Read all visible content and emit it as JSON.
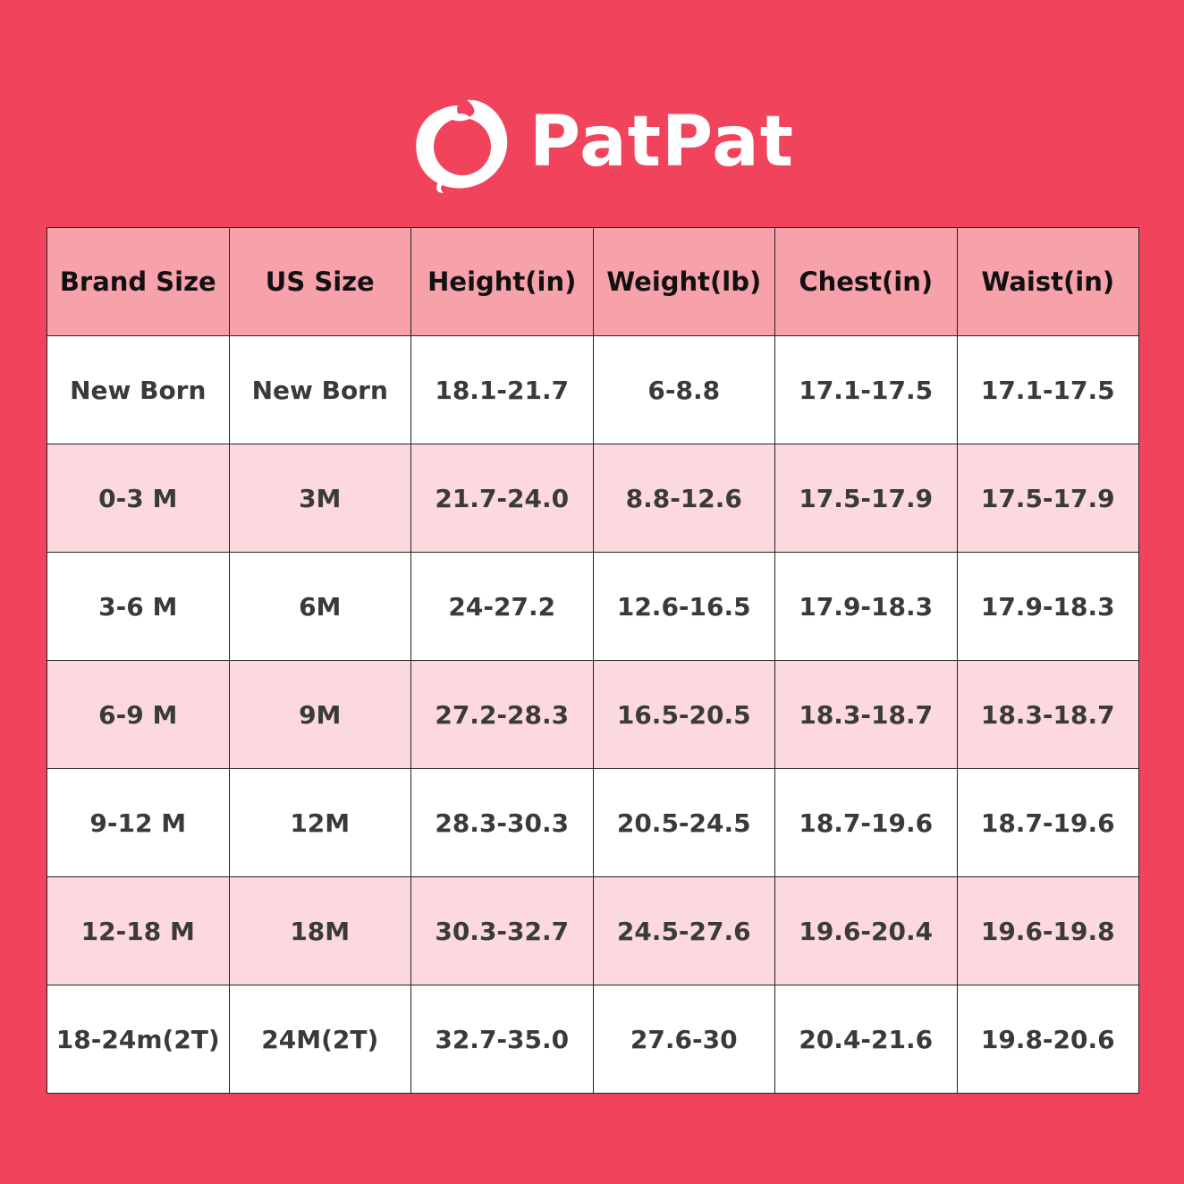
{
  "brand": {
    "name": "PatPat",
    "logo_icon": "patpat-circle-logo"
  },
  "colors": {
    "background": "#f1435c",
    "header": "#f7a1ab",
    "alt_row": "#fbd9de",
    "row": "#ffffff"
  },
  "table": {
    "headers": [
      "Brand Size",
      "US Size",
      "Height(in)",
      "Weight(lb)",
      "Chest(in)",
      "Waist(in)"
    ],
    "rows": [
      [
        "New Born",
        "New Born",
        "18.1-21.7",
        "6-8.8",
        "17.1-17.5",
        "17.1-17.5"
      ],
      [
        "0-3 M",
        "3M",
        "21.7-24.0",
        "8.8-12.6",
        "17.5-17.9",
        "17.5-17.9"
      ],
      [
        "3-6 M",
        "6M",
        "24-27.2",
        "12.6-16.5",
        "17.9-18.3",
        "17.9-18.3"
      ],
      [
        "6-9 M",
        "9M",
        "27.2-28.3",
        "16.5-20.5",
        "18.3-18.7",
        "18.3-18.7"
      ],
      [
        "9-12 M",
        "12M",
        "28.3-30.3",
        "20.5-24.5",
        "18.7-19.6",
        "18.7-19.6"
      ],
      [
        "12-18 M",
        "18M",
        "30.3-32.7",
        "24.5-27.6",
        "19.6-20.4",
        "19.6-19.8"
      ],
      [
        "18-24m(2T)",
        "24M(2T)",
        "32.7-35.0",
        "27.6-30",
        "20.4-21.6",
        "19.8-20.6"
      ]
    ]
  }
}
